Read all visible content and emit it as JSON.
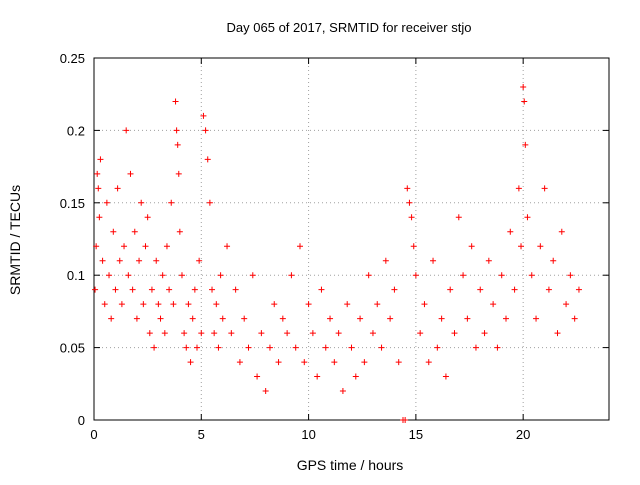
{
  "chart_data": {
    "type": "scatter",
    "title": "Day 065 of 2017, SRMTID for receiver stjo",
    "xlabel": "GPS time / hours",
    "ylabel": "SRMTID / TECUs",
    "xlim": [
      0,
      24
    ],
    "ylim": [
      0,
      0.25
    ],
    "xticks": [
      0,
      5,
      10,
      15,
      20
    ],
    "yticks": [
      0,
      0.05,
      0.1,
      0.15,
      0.2,
      0.25
    ],
    "xtick_labels": [
      "0",
      "5",
      "10",
      "15",
      "20"
    ],
    "ytick_labels": [
      "0",
      "0.05",
      "0.1",
      "0.15",
      "0.2",
      "0.25"
    ],
    "grid": true,
    "marker": "plus",
    "series": [
      {
        "color": "#ff0000",
        "x": [
          0.05,
          0.1,
          0.15,
          0.2,
          0.25,
          0.3,
          0.4,
          0.5,
          0.6,
          0.7,
          0.8,
          0.9,
          1.0,
          1.1,
          1.2,
          1.3,
          1.4,
          1.5,
          1.6,
          1.7,
          1.8,
          1.9,
          2.0,
          2.1,
          2.2,
          2.3,
          2.4,
          2.5,
          2.6,
          2.7,
          2.8,
          2.9,
          3.0,
          3.1,
          3.2,
          3.3,
          3.4,
          3.5,
          3.6,
          3.7,
          3.8,
          3.85,
          3.9,
          3.95,
          4.0,
          4.1,
          4.2,
          4.3,
          4.4,
          4.5,
          4.6,
          4.7,
          4.8,
          4.9,
          5.0,
          5.1,
          5.2,
          5.3,
          5.4,
          5.5,
          5.6,
          5.7,
          5.8,
          5.9,
          6.0,
          6.2,
          6.4,
          6.6,
          6.8,
          7.0,
          7.2,
          7.4,
          7.6,
          7.8,
          8.0,
          8.2,
          8.4,
          8.6,
          8.8,
          9.0,
          9.2,
          9.4,
          9.6,
          9.8,
          10.0,
          10.2,
          10.4,
          10.6,
          10.8,
          11.0,
          11.2,
          11.4,
          11.6,
          11.8,
          12.0,
          12.2,
          12.4,
          12.6,
          12.8,
          13.0,
          13.2,
          13.4,
          13.6,
          13.8,
          14.0,
          14.2,
          14.4,
          14.5,
          14.6,
          14.7,
          14.8,
          14.9,
          15.0,
          15.2,
          15.4,
          15.6,
          15.8,
          16.0,
          16.2,
          16.4,
          16.6,
          16.8,
          17.0,
          17.2,
          17.4,
          17.6,
          17.8,
          18.0,
          18.2,
          18.4,
          18.6,
          18.8,
          19.0,
          19.2,
          19.4,
          19.6,
          19.8,
          19.9,
          20.0,
          20.05,
          20.1,
          20.2,
          20.4,
          20.6,
          20.8,
          21.0,
          21.2,
          21.4,
          21.6,
          21.8,
          22.0,
          22.2,
          22.4,
          22.6
        ],
        "y": [
          0.09,
          0.12,
          0.17,
          0.16,
          0.14,
          0.18,
          0.11,
          0.08,
          0.15,
          0.1,
          0.07,
          0.13,
          0.09,
          0.16,
          0.11,
          0.08,
          0.12,
          0.2,
          0.1,
          0.17,
          0.09,
          0.13,
          0.07,
          0.11,
          0.15,
          0.08,
          0.12,
          0.14,
          0.06,
          0.09,
          0.05,
          0.11,
          0.08,
          0.07,
          0.1,
          0.06,
          0.12,
          0.09,
          0.15,
          0.08,
          0.22,
          0.2,
          0.19,
          0.17,
          0.13,
          0.1,
          0.06,
          0.05,
          0.08,
          0.04,
          0.07,
          0.09,
          0.05,
          0.11,
          0.06,
          0.21,
          0.2,
          0.18,
          0.15,
          0.09,
          0.06,
          0.08,
          0.05,
          0.1,
          0.07,
          0.12,
          0.06,
          0.09,
          0.04,
          0.07,
          0.05,
          0.1,
          0.03,
          0.06,
          0.02,
          0.05,
          0.08,
          0.04,
          0.07,
          0.06,
          0.1,
          0.05,
          0.12,
          0.04,
          0.08,
          0.06,
          0.03,
          0.09,
          0.05,
          0.07,
          0.04,
          0.06,
          0.02,
          0.08,
          0.05,
          0.03,
          0.07,
          0.04,
          0.1,
          0.06,
          0.08,
          0.05,
          0.11,
          0.07,
          0.09,
          0.04,
          0.0,
          0.0,
          0.16,
          0.15,
          0.14,
          0.12,
          0.1,
          0.06,
          0.08,
          0.04,
          0.11,
          0.05,
          0.07,
          0.03,
          0.09,
          0.06,
          0.14,
          0.1,
          0.07,
          0.12,
          0.05,
          0.09,
          0.06,
          0.11,
          0.08,
          0.05,
          0.1,
          0.07,
          0.13,
          0.09,
          0.16,
          0.12,
          0.23,
          0.22,
          0.19,
          0.14,
          0.1,
          0.07,
          0.12,
          0.16,
          0.09,
          0.11,
          0.06,
          0.13,
          0.08,
          0.1,
          0.07,
          0.09
        ]
      }
    ]
  }
}
